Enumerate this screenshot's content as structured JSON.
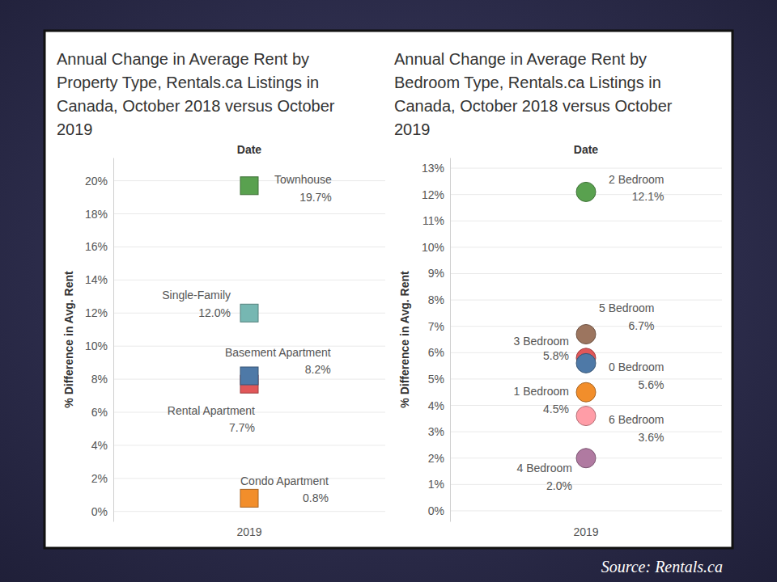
{
  "chart_data": [
    {
      "type": "scatter",
      "title": "Annual Change in Average Rent by Property Type, Rentals.ca Listings in Canada, October 2018 versus October 2019",
      "x_label": "Date",
      "y_label": "% Difference in Avg. Rent",
      "categories": [
        "2019"
      ],
      "marker": "square",
      "data_labels": true,
      "grid": true,
      "ylim": [
        -0.6,
        21.4
      ],
      "yticks": [
        {
          "value": 0,
          "label": "0%"
        },
        {
          "value": 2,
          "label": "2%"
        },
        {
          "value": 4,
          "label": "4%"
        },
        {
          "value": 6,
          "label": "6%"
        },
        {
          "value": 8,
          "label": "8%"
        },
        {
          "value": 10,
          "label": "10%"
        },
        {
          "value": 12,
          "label": "12%"
        },
        {
          "value": 14,
          "label": "14%"
        },
        {
          "value": 16,
          "label": "16%"
        },
        {
          "value": 18,
          "label": "18%"
        },
        {
          "value": 20,
          "label": "20%"
        }
      ],
      "series": [
        {
          "name": "Townhouse",
          "color": "#59a14f",
          "values": [
            19.7
          ],
          "value_labels": [
            "19.7%"
          ]
        },
        {
          "name": "Single-Family",
          "color": "#76b7b2",
          "values": [
            12.0
          ],
          "value_labels": [
            "12.0%"
          ]
        },
        {
          "name": "Rental Apartment",
          "color": "#e15759",
          "values": [
            7.7
          ],
          "value_labels": [
            "7.7%"
          ]
        },
        {
          "name": "Basement Apartment",
          "color": "#4e79a7",
          "values": [
            8.2
          ],
          "value_labels": [
            "8.2%"
          ]
        },
        {
          "name": "Condo Apartment",
          "color": "#f28e2b",
          "values": [
            0.8
          ],
          "value_labels": [
            "0.8%"
          ]
        }
      ]
    },
    {
      "type": "scatter",
      "title": "Annual Change in Average Rent by Bedroom Type, Rentals.ca Listings in Canada, October 2018 versus October 2019",
      "x_label": "Date",
      "y_label": "% Difference in Avg. Rent",
      "categories": [
        "2019"
      ],
      "marker": "circle",
      "data_labels": true,
      "grid": true,
      "ylim": [
        -0.4,
        13.4
      ],
      "yticks": [
        {
          "value": 0,
          "label": "0%"
        },
        {
          "value": 1,
          "label": "1%"
        },
        {
          "value": 2,
          "label": "2%"
        },
        {
          "value": 3,
          "label": "3%"
        },
        {
          "value": 4,
          "label": "4%"
        },
        {
          "value": 5,
          "label": "5%"
        },
        {
          "value": 6,
          "label": "6%"
        },
        {
          "value": 7,
          "label": "7%"
        },
        {
          "value": 8,
          "label": "8%"
        },
        {
          "value": 9,
          "label": "9%"
        },
        {
          "value": 10,
          "label": "10%"
        },
        {
          "value": 11,
          "label": "11%"
        },
        {
          "value": 12,
          "label": "12%"
        },
        {
          "value": 13,
          "label": "13%"
        }
      ],
      "series": [
        {
          "name": "2 Bedroom",
          "color": "#59a14f",
          "values": [
            12.1
          ],
          "value_labels": [
            "12.1%"
          ]
        },
        {
          "name": "5 Bedroom",
          "color": "#9c755f",
          "values": [
            6.7
          ],
          "value_labels": [
            "6.7%"
          ]
        },
        {
          "name": "3 Bedroom",
          "color": "#e15759",
          "values": [
            5.8
          ],
          "value_labels": [
            "5.8%"
          ]
        },
        {
          "name": "0 Bedroom",
          "color": "#4e79a7",
          "values": [
            5.6
          ],
          "value_labels": [
            "5.6%"
          ]
        },
        {
          "name": "1 Bedroom",
          "color": "#f28e2b",
          "values": [
            4.5
          ],
          "value_labels": [
            "4.5%"
          ]
        },
        {
          "name": "6 Bedroom",
          "color": "#ff9da7",
          "values": [
            3.6
          ],
          "value_labels": [
            "3.6%"
          ]
        },
        {
          "name": "4 Bedroom",
          "color": "#b07aa1",
          "values": [
            2.0
          ],
          "value_labels": [
            "2.0%"
          ]
        }
      ]
    }
  ],
  "source": "Source: Rentals.ca"
}
